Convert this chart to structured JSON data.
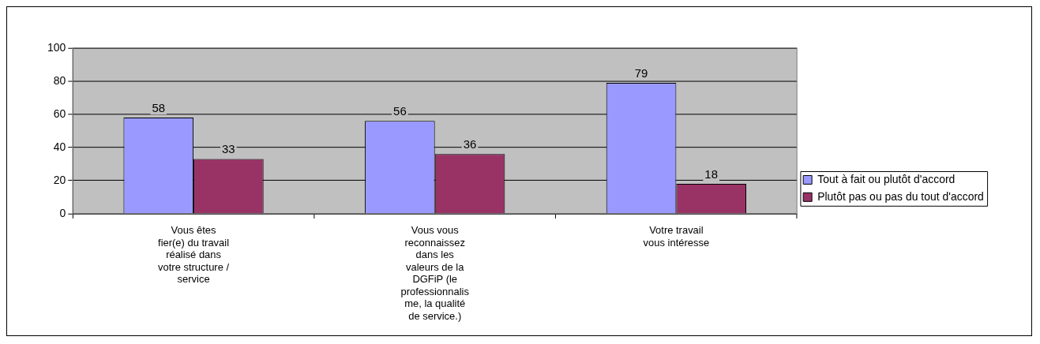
{
  "chart_data": {
    "type": "bar",
    "categories": [
      "Vous êtes fier(e) du travail réalisé dans votre structure / service",
      "Vous vous reconnaissez dans les valeurs de la DGFiP (le professionnalisme, la qualité de service.)",
      "Votre travail vous intéresse"
    ],
    "series": [
      {
        "name": "Tout à fait ou plutôt d'accord",
        "color": "#9999ff",
        "values": [
          58,
          56,
          79
        ]
      },
      {
        "name": "Plutôt pas ou pas du tout d'accord",
        "color": "#993366",
        "values": [
          33,
          36,
          18
        ]
      }
    ],
    "ylim": [
      0,
      100
    ],
    "yticks": [
      0,
      20,
      40,
      60,
      80,
      100
    ],
    "grid": "y",
    "legend": "right",
    "data_labels": true
  }
}
